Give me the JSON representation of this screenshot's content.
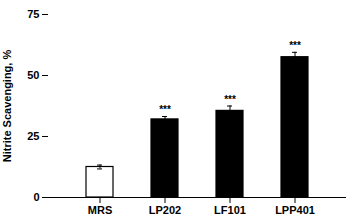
{
  "chart_data": {
    "type": "bar",
    "categories": [
      "MRS",
      "LP202",
      "LF101",
      "LPP401"
    ],
    "values": [
      12.5,
      32.0,
      35.5,
      57.5
    ],
    "errors": [
      0.8,
      1.2,
      2.0,
      2.0
    ],
    "colors": [
      "#ffffff",
      "#000000",
      "#000000",
      "#000000"
    ],
    "significance": [
      null,
      "***",
      "***",
      "***"
    ],
    "ylabel": "Nitrite Scavenging, %",
    "ylim": [
      0,
      75
    ],
    "yticks": [
      0,
      25,
      50,
      75
    ],
    "grid": false
  }
}
